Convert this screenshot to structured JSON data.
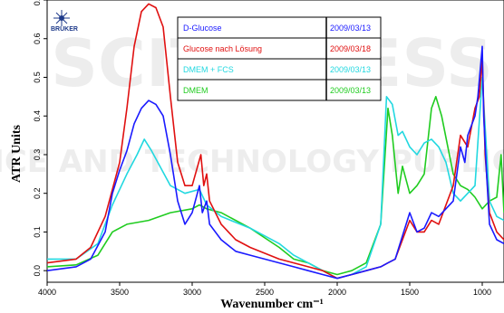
{
  "logo": {
    "text": "BRUKER"
  },
  "watermark": {
    "line1": "SCITEPRESS",
    "line2": "SCIENCE AND TECHNOLOGY PUBLICATIONS"
  },
  "colors": {
    "blue": "#1a1aff",
    "red": "#e01010",
    "cyan": "#22d8e0",
    "green": "#20cc20"
  },
  "chart_data": {
    "type": "line",
    "title": "",
    "xlabel": "Wavenumber cm⁻¹",
    "ylabel": "ATR Units",
    "xlim": [
      4000,
      850
    ],
    "ylim": [
      -0.03,
      0.7
    ],
    "xticks": [
      4000,
      3500,
      3000,
      2500,
      2000,
      1500,
      1000
    ],
    "yticks": [
      0.0,
      0.1,
      0.2,
      0.3,
      0.4,
      0.5,
      0.6,
      0.7
    ],
    "ytick_labels": [
      "0.0",
      "0.1",
      "0.2",
      "0.3",
      "0.4",
      "0.5",
      "0.6",
      "0.7"
    ],
    "legend_position": "top-center",
    "legend": [
      {
        "name": "D-Glucose",
        "date": "2009/03/13",
        "color": "#1a1aff"
      },
      {
        "name": "Glucose nach Lösung",
        "date": "2009/03/18",
        "color": "#e01010"
      },
      {
        "name": "DMEM + FCS",
        "date": "2009/03/13",
        "color": "#22d8e0"
      },
      {
        "name": "DMEM",
        "date": "2009/03/13",
        "color": "#20cc20"
      }
    ],
    "series": [
      {
        "name": "DMEM",
        "color": "#20cc20",
        "points": [
          [
            4000,
            0.01
          ],
          [
            3800,
            0.015
          ],
          [
            3650,
            0.04
          ],
          [
            3550,
            0.1
          ],
          [
            3450,
            0.12
          ],
          [
            3300,
            0.13
          ],
          [
            3150,
            0.15
          ],
          [
            3000,
            0.16
          ],
          [
            2950,
            0.17
          ],
          [
            2900,
            0.16
          ],
          [
            2800,
            0.15
          ],
          [
            2600,
            0.11
          ],
          [
            2400,
            0.06
          ],
          [
            2300,
            0.03
          ],
          [
            2200,
            0.02
          ],
          [
            2100,
            0.0
          ],
          [
            2000,
            -0.01
          ],
          [
            1900,
            0.0
          ],
          [
            1800,
            0.02
          ],
          [
            1700,
            0.12
          ],
          [
            1650,
            0.42
          ],
          [
            1620,
            0.35
          ],
          [
            1580,
            0.2
          ],
          [
            1550,
            0.27
          ],
          [
            1500,
            0.2
          ],
          [
            1450,
            0.22
          ],
          [
            1400,
            0.25
          ],
          [
            1350,
            0.42
          ],
          [
            1320,
            0.45
          ],
          [
            1280,
            0.4
          ],
          [
            1200,
            0.25
          ],
          [
            1150,
            0.22
          ],
          [
            1100,
            0.21
          ],
          [
            1050,
            0.19
          ],
          [
            1000,
            0.16
          ],
          [
            950,
            0.18
          ],
          [
            900,
            0.19
          ],
          [
            870,
            0.3
          ],
          [
            850,
            0.15
          ]
        ]
      },
      {
        "name": "DMEM + FCS",
        "color": "#22d8e0",
        "points": [
          [
            4000,
            0.03
          ],
          [
            3800,
            0.03
          ],
          [
            3650,
            0.07
          ],
          [
            3550,
            0.17
          ],
          [
            3450,
            0.25
          ],
          [
            3380,
            0.3
          ],
          [
            3330,
            0.34
          ],
          [
            3280,
            0.31
          ],
          [
            3150,
            0.22
          ],
          [
            3050,
            0.2
          ],
          [
            2950,
            0.21
          ],
          [
            2900,
            0.17
          ],
          [
            2800,
            0.14
          ],
          [
            2600,
            0.11
          ],
          [
            2400,
            0.07
          ],
          [
            2300,
            0.04
          ],
          [
            2200,
            0.02
          ],
          [
            2100,
            0.0
          ],
          [
            2000,
            -0.02
          ],
          [
            1900,
            -0.01
          ],
          [
            1800,
            0.01
          ],
          [
            1700,
            0.12
          ],
          [
            1660,
            0.45
          ],
          [
            1620,
            0.43
          ],
          [
            1580,
            0.35
          ],
          [
            1550,
            0.36
          ],
          [
            1500,
            0.32
          ],
          [
            1450,
            0.3
          ],
          [
            1400,
            0.33
          ],
          [
            1350,
            0.34
          ],
          [
            1300,
            0.32
          ],
          [
            1250,
            0.28
          ],
          [
            1200,
            0.2
          ],
          [
            1150,
            0.18
          ],
          [
            1100,
            0.2
          ],
          [
            1050,
            0.22
          ],
          [
            1000,
            0.5
          ],
          [
            950,
            0.18
          ],
          [
            900,
            0.14
          ],
          [
            850,
            0.13
          ]
        ]
      },
      {
        "name": "Glucose nach Lösung",
        "color": "#e01010",
        "points": [
          [
            4000,
            0.02
          ],
          [
            3800,
            0.03
          ],
          [
            3700,
            0.06
          ],
          [
            3600,
            0.14
          ],
          [
            3500,
            0.28
          ],
          [
            3450,
            0.42
          ],
          [
            3400,
            0.58
          ],
          [
            3350,
            0.67
          ],
          [
            3300,
            0.69
          ],
          [
            3250,
            0.68
          ],
          [
            3200,
            0.63
          ],
          [
            3150,
            0.45
          ],
          [
            3100,
            0.28
          ],
          [
            3050,
            0.22
          ],
          [
            3000,
            0.22
          ],
          [
            2940,
            0.3
          ],
          [
            2920,
            0.22
          ],
          [
            2900,
            0.25
          ],
          [
            2880,
            0.18
          ],
          [
            2800,
            0.12
          ],
          [
            2700,
            0.08
          ],
          [
            2600,
            0.06
          ],
          [
            2400,
            0.03
          ],
          [
            2300,
            0.02
          ],
          [
            2200,
            0.01
          ],
          [
            2100,
            0.0
          ],
          [
            2000,
            -0.02
          ],
          [
            1900,
            -0.01
          ],
          [
            1800,
            0.0
          ],
          [
            1700,
            0.01
          ],
          [
            1650,
            0.02
          ],
          [
            1600,
            0.03
          ],
          [
            1500,
            0.13
          ],
          [
            1450,
            0.1
          ],
          [
            1400,
            0.1
          ],
          [
            1350,
            0.13
          ],
          [
            1300,
            0.12
          ],
          [
            1200,
            0.22
          ],
          [
            1150,
            0.35
          ],
          [
            1100,
            0.32
          ],
          [
            1050,
            0.42
          ],
          [
            1020,
            0.45
          ],
          [
            1000,
            0.55
          ],
          [
            980,
            0.3
          ],
          [
            950,
            0.15
          ],
          [
            900,
            0.1
          ],
          [
            850,
            0.08
          ]
        ]
      },
      {
        "name": "D-Glucose",
        "color": "#1a1aff",
        "points": [
          [
            4000,
            0.0
          ],
          [
            3800,
            0.01
          ],
          [
            3700,
            0.03
          ],
          [
            3600,
            0.1
          ],
          [
            3550,
            0.2
          ],
          [
            3500,
            0.26
          ],
          [
            3450,
            0.31
          ],
          [
            3400,
            0.38
          ],
          [
            3350,
            0.42
          ],
          [
            3300,
            0.44
          ],
          [
            3250,
            0.43
          ],
          [
            3200,
            0.4
          ],
          [
            3150,
            0.3
          ],
          [
            3100,
            0.18
          ],
          [
            3050,
            0.12
          ],
          [
            3000,
            0.15
          ],
          [
            2950,
            0.22
          ],
          [
            2930,
            0.15
          ],
          [
            2900,
            0.18
          ],
          [
            2880,
            0.12
          ],
          [
            2800,
            0.08
          ],
          [
            2700,
            0.05
          ],
          [
            2600,
            0.04
          ],
          [
            2400,
            0.02
          ],
          [
            2300,
            0.01
          ],
          [
            2200,
            0.0
          ],
          [
            2100,
            -0.01
          ],
          [
            2000,
            -0.02
          ],
          [
            1900,
            -0.01
          ],
          [
            1800,
            0.0
          ],
          [
            1700,
            0.01
          ],
          [
            1650,
            0.02
          ],
          [
            1600,
            0.03
          ],
          [
            1500,
            0.15
          ],
          [
            1450,
            0.1
          ],
          [
            1400,
            0.11
          ],
          [
            1350,
            0.15
          ],
          [
            1300,
            0.14
          ],
          [
            1200,
            0.18
          ],
          [
            1150,
            0.32
          ],
          [
            1120,
            0.28
          ],
          [
            1100,
            0.35
          ],
          [
            1050,
            0.4
          ],
          [
            1030,
            0.45
          ],
          [
            1000,
            0.58
          ],
          [
            990,
            0.4
          ],
          [
            970,
            0.25
          ],
          [
            950,
            0.12
          ],
          [
            900,
            0.08
          ],
          [
            850,
            0.07
          ]
        ]
      }
    ]
  }
}
